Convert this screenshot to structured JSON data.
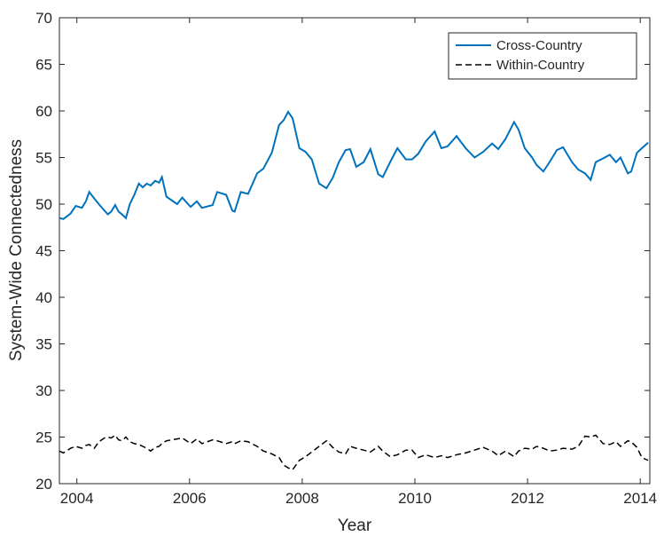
{
  "chart_data": {
    "type": "line",
    "xlabel": "Year",
    "ylabel": "System-Wide Connectedness",
    "x": [
      2003.69,
      2003.76,
      2003.89,
      2003.98,
      2004.09,
      2004.16,
      2004.22,
      2004.31,
      2004.39,
      2004.49,
      2004.55,
      2004.61,
      2004.68,
      2004.74,
      2004.8,
      2004.87,
      2004.94,
      2005.02,
      2005.1,
      2005.17,
      2005.24,
      2005.31,
      2005.39,
      2005.46,
      2005.51,
      2005.59,
      2005.78,
      2005.87,
      2006.02,
      2006.13,
      2006.22,
      2006.41,
      2006.49,
      2006.65,
      2006.76,
      2006.8,
      2006.91,
      2007.04,
      2007.2,
      2007.31,
      2007.46,
      2007.59,
      2007.67,
      2007.75,
      2007.83,
      2007.95,
      2008.06,
      2008.17,
      2008.3,
      2008.43,
      2008.54,
      2008.65,
      2008.77,
      2008.85,
      2008.96,
      2009.09,
      2009.21,
      2009.35,
      2009.43,
      2009.56,
      2009.69,
      2009.84,
      2009.95,
      2010.06,
      2010.19,
      2010.35,
      2010.47,
      2010.58,
      2010.74,
      2010.9,
      2011.06,
      2011.21,
      2011.37,
      2011.48,
      2011.61,
      2011.76,
      2011.84,
      2011.95,
      2012.08,
      2012.16,
      2012.28,
      2012.39,
      2012.52,
      2012.63,
      2012.79,
      2012.9,
      2013.02,
      2013.12,
      2013.21,
      2013.34,
      2013.46,
      2013.57,
      2013.65,
      2013.78,
      2013.84,
      2013.94,
      2014.03,
      2014.14
    ],
    "series": [
      {
        "name": "Cross-Country",
        "color": "#0072bd",
        "dash": false,
        "values": [
          48.5,
          48.4,
          49.0,
          49.8,
          49.6,
          50.3,
          51.3,
          50.6,
          50.0,
          49.3,
          48.9,
          49.2,
          49.9,
          49.2,
          48.9,
          48.5,
          50.0,
          51.0,
          52.2,
          51.8,
          52.2,
          52.0,
          52.5,
          52.3,
          52.9,
          50.8,
          50.0,
          50.7,
          49.7,
          50.3,
          49.6,
          49.9,
          51.3,
          51.0,
          49.3,
          49.2,
          51.3,
          51.1,
          53.3,
          53.8,
          55.5,
          58.5,
          59.0,
          59.9,
          59.2,
          56.0,
          55.6,
          54.8,
          52.2,
          51.7,
          52.8,
          54.5,
          55.8,
          55.9,
          54.0,
          54.5,
          55.9,
          53.2,
          52.9,
          54.5,
          56.0,
          54.8,
          54.8,
          55.4,
          56.7,
          57.8,
          56.0,
          56.2,
          57.3,
          56.0,
          55.0,
          55.6,
          56.5,
          55.9,
          57.0,
          58.8,
          58.0,
          56.0,
          55.0,
          54.2,
          53.5,
          54.5,
          55.8,
          56.1,
          54.5,
          53.7,
          53.3,
          52.6,
          54.5,
          54.9,
          55.3,
          54.5,
          55.0,
          53.3,
          53.5,
          55.5,
          56.0,
          56.6
        ]
      },
      {
        "name": "Within-Country",
        "color": "#000000",
        "dash": true,
        "values": [
          23.5,
          23.3,
          23.8,
          24.0,
          23.8,
          24.1,
          24.2,
          23.8,
          24.5,
          24.9,
          25.0,
          24.9,
          25.2,
          24.7,
          24.6,
          25.0,
          24.5,
          24.3,
          24.2,
          24.0,
          23.8,
          23.5,
          23.9,
          24.0,
          24.3,
          24.6,
          24.8,
          24.9,
          24.3,
          24.8,
          24.3,
          24.7,
          24.6,
          24.3,
          24.5,
          24.3,
          24.6,
          24.5,
          24.0,
          23.5,
          23.2,
          22.8,
          22.0,
          21.7,
          21.5,
          22.5,
          22.9,
          23.4,
          24.0,
          24.6,
          23.9,
          23.4,
          23.2,
          24.0,
          23.8,
          23.6,
          23.4,
          24.0,
          23.5,
          22.9,
          23.1,
          23.6,
          23.6,
          22.8,
          23.1,
          22.8,
          23.0,
          22.8,
          23.1,
          23.3,
          23.6,
          23.9,
          23.5,
          23.0,
          23.5,
          22.9,
          23.5,
          23.8,
          23.7,
          24.0,
          23.8,
          23.5,
          23.6,
          23.8,
          23.7,
          24.0,
          25.1,
          25.0,
          25.2,
          24.3,
          24.2,
          24.5,
          24.0,
          24.6,
          24.5,
          23.9,
          22.8,
          22.5
        ]
      }
    ],
    "xlim": [
      2003.69,
      2014.17
    ],
    "xticks": [
      2004,
      2006,
      2008,
      2010,
      2012,
      2014
    ],
    "ylim": [
      20,
      70
    ],
    "yticks": [
      20,
      25,
      30,
      35,
      40,
      45,
      50,
      55,
      60,
      65,
      70
    ],
    "grid": false,
    "legend": "top-right"
  }
}
